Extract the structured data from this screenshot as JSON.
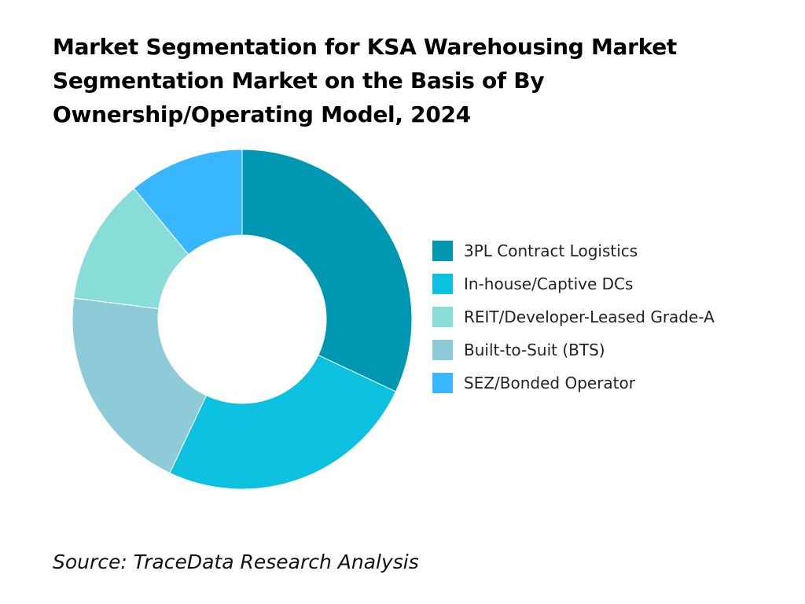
{
  "chart_data": {
    "type": "pie",
    "variant": "donut",
    "title": "Market Segmentation for KSA Warehousing Market Segmentation Market on the Basis of By Ownership/Operating Model, 2024",
    "legend_position": "right",
    "series": [
      {
        "name": "3PL Contract Logistics",
        "value": 32,
        "color": "#0097B2"
      },
      {
        "name": "In-house/Captive DCs",
        "value": 25,
        "color": "#0CC0DF"
      },
      {
        "name": "REIT/Developer-Leased Grade-A",
        "value": 12,
        "color": "#88DDD9"
      },
      {
        "name": "Built-to-Suit (BTS)",
        "value": 20,
        "color": "#8ECBD8"
      },
      {
        "name": "SEZ/Bonded Operator",
        "value": 11,
        "color": "#38B6FF"
      }
    ]
  },
  "source": "Source: TraceData Research Analysis"
}
